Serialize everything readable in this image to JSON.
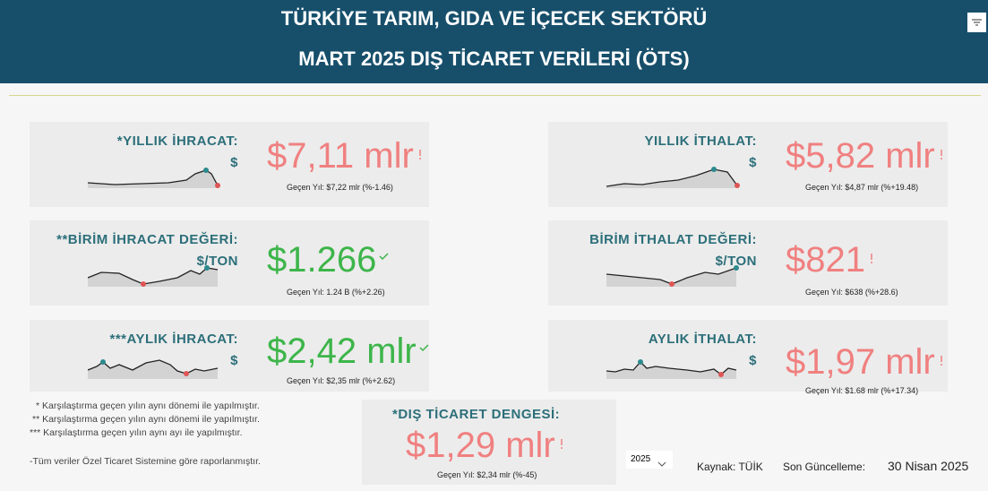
{
  "header": {
    "title_line1": "TÜRKİYE TARIM, GIDA VE İÇECEK SEKTÖRÜ",
    "title_line2": "MART 2025 DIŞ TİCARET VERİLERİ (ÖTS)"
  },
  "cards": [
    {
      "label": "*YILLIK İHRACAT:",
      "unit": "$",
      "value": "$7,11 mlr",
      "comparison": "Geçen Yıl: $7,22 mlr (%-1.46)",
      "color": "#f08080"
    },
    {
      "label": "YILLIK İTHALAT:",
      "unit": "$",
      "value": "$5,82 mlr",
      "comparison": "Geçen Yıl: $4,87 mlr (%+19.48)",
      "color": "#f08080"
    },
    {
      "label": "**BİRİM İHRACAT DEĞERİ:",
      "unit": "$/TON",
      "value": "$1.266",
      "comparison": "Geçen Yıl: 1.24 B (%+2.26)",
      "color": "#3db54a"
    },
    {
      "label": "BİRİM İTHALAT DEĞERİ:",
      "unit": "$/TON",
      "value": "$821",
      "comparison": "Geçen Yıl: $638 (%+28.6)",
      "color": "#f08080"
    },
    {
      "label": "***AYLIK İHRACAT:",
      "unit": "$",
      "value": "$2,42 mlr",
      "comparison": "Geçen Yıl: $2,35 mlr (%+2.62)",
      "color": "#3db54a"
    },
    {
      "label": "AYLIK İTHALAT:",
      "unit": "$",
      "value": "$1,97 mlr",
      "comparison": "Geçen Yıl: $1.68 mlr (%+17.34)",
      "color": "#f08080"
    }
  ],
  "balance": {
    "label": "*DIŞ TİCARET DENGESİ:",
    "value": "$1,29 mlr",
    "comparison": "Geçen Yıl: $2,34 mlr (%-45)",
    "color": "#f08080"
  },
  "notes": [
    "* Karşılaştırma geçen yılın aynı dönemi ile yapılmıştır.",
    "** Karşılaştırma geçen yılın aynı dönemi ile yapılmıştır.",
    "*** Karşılaştırma geçen yılın aynı ayı ile yapılmıştır.",
    "-Tüm veriler Özel Ticaret Sistemine göre raporlanmıştır."
  ],
  "footer": {
    "year": "2025",
    "source": "Kaynak: TÜİK",
    "updated_label": "Son Güncelleme:",
    "updated_date": "30 Nisan 2025"
  }
}
